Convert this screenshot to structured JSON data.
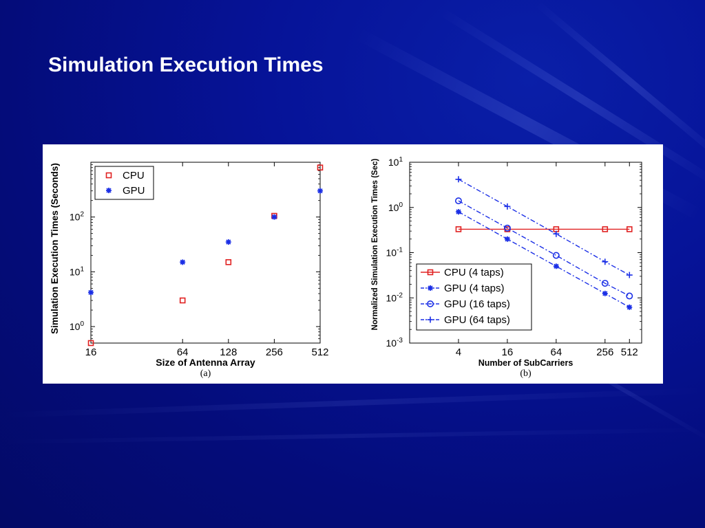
{
  "slide": {
    "title": "Simulation Execution Times"
  },
  "colors": {
    "cpu": "#e02020",
    "gpu": "#1a2ee6",
    "background": "#05108a"
  },
  "chart_data": [
    {
      "type": "scatter",
      "caption": "(a)",
      "xlabel": "Size of Antenna Array",
      "ylabel": "Simulation Execution Times (Seconds)",
      "x_scale": "log2",
      "y_scale": "log10",
      "xlim": [
        16,
        512
      ],
      "ylim": [
        0.5,
        1000
      ],
      "xticks": [
        {
          "v": 16,
          "label": "16"
        },
        {
          "v": 64,
          "label": "64"
        },
        {
          "v": 128,
          "label": "128"
        },
        {
          "v": 256,
          "label": "256"
        },
        {
          "v": 512,
          "label": "512"
        }
      ],
      "yticks": [
        {
          "v": 1,
          "base": "10",
          "exp": "0"
        },
        {
          "v": 10,
          "base": "10",
          "exp": "1"
        },
        {
          "v": 100,
          "base": "10",
          "exp": "2"
        }
      ],
      "legend": {
        "position": "top-left"
      },
      "series": [
        {
          "name": "CPU",
          "marker": "square",
          "color": "#e02020",
          "x": [
            16,
            64,
            128,
            256,
            512
          ],
          "y": [
            0.5,
            3,
            15,
            105,
            800
          ]
        },
        {
          "name": "GPU",
          "marker": "star",
          "color": "#1a2ee6",
          "x": [
            16,
            64,
            128,
            256,
            512
          ],
          "y": [
            4.2,
            15,
            35,
            100,
            300
          ]
        }
      ]
    },
    {
      "type": "line",
      "caption": "(b)",
      "xlabel": "Number of SubCarriers",
      "ylabel": "Normalized Simulation Execution Times (Sec)",
      "x_scale": "log2",
      "y_scale": "log10",
      "xlim": [
        1,
        724
      ],
      "ylim": [
        0.001,
        10
      ],
      "xticks": [
        {
          "v": 4,
          "label": "4"
        },
        {
          "v": 16,
          "label": "16"
        },
        {
          "v": 64,
          "label": "64"
        },
        {
          "v": 256,
          "label": "256"
        },
        {
          "v": 512,
          "label": "512"
        }
      ],
      "yticks": [
        {
          "v": 10,
          "base": "10",
          "exp": "1"
        },
        {
          "v": 1,
          "base": "10",
          "exp": "0"
        },
        {
          "v": 0.1,
          "base": "10",
          "exp": "-1"
        },
        {
          "v": 0.01,
          "base": "10",
          "exp": "-2"
        },
        {
          "v": 0.001,
          "base": "10",
          "exp": "-3"
        }
      ],
      "legend": {
        "position": "bottom-left"
      },
      "series": [
        {
          "name": "CPU (4 taps)",
          "marker": "square",
          "line": "solid",
          "color": "#e02020",
          "x": [
            4,
            16,
            64,
            256,
            512
          ],
          "y": [
            0.33,
            0.33,
            0.33,
            0.33,
            0.33
          ]
        },
        {
          "name": "GPU (4 taps)",
          "marker": "star",
          "line": "dashdot",
          "color": "#1a2ee6",
          "x": [
            4,
            16,
            64,
            256,
            512
          ],
          "y": [
            0.8,
            0.2,
            0.05,
            0.0125,
            0.0062
          ]
        },
        {
          "name": "GPU (16 taps)",
          "marker": "circle",
          "line": "dashdot",
          "color": "#1a2ee6",
          "x": [
            4,
            16,
            64,
            256,
            512
          ],
          "y": [
            1.4,
            0.35,
            0.087,
            0.021,
            0.011
          ]
        },
        {
          "name": "GPU (64 taps)",
          "marker": "plus",
          "line": "dashdot",
          "color": "#1a2ee6",
          "x": [
            4,
            16,
            64,
            256,
            512
          ],
          "y": [
            4.2,
            1.05,
            0.26,
            0.063,
            0.032
          ]
        }
      ]
    }
  ]
}
